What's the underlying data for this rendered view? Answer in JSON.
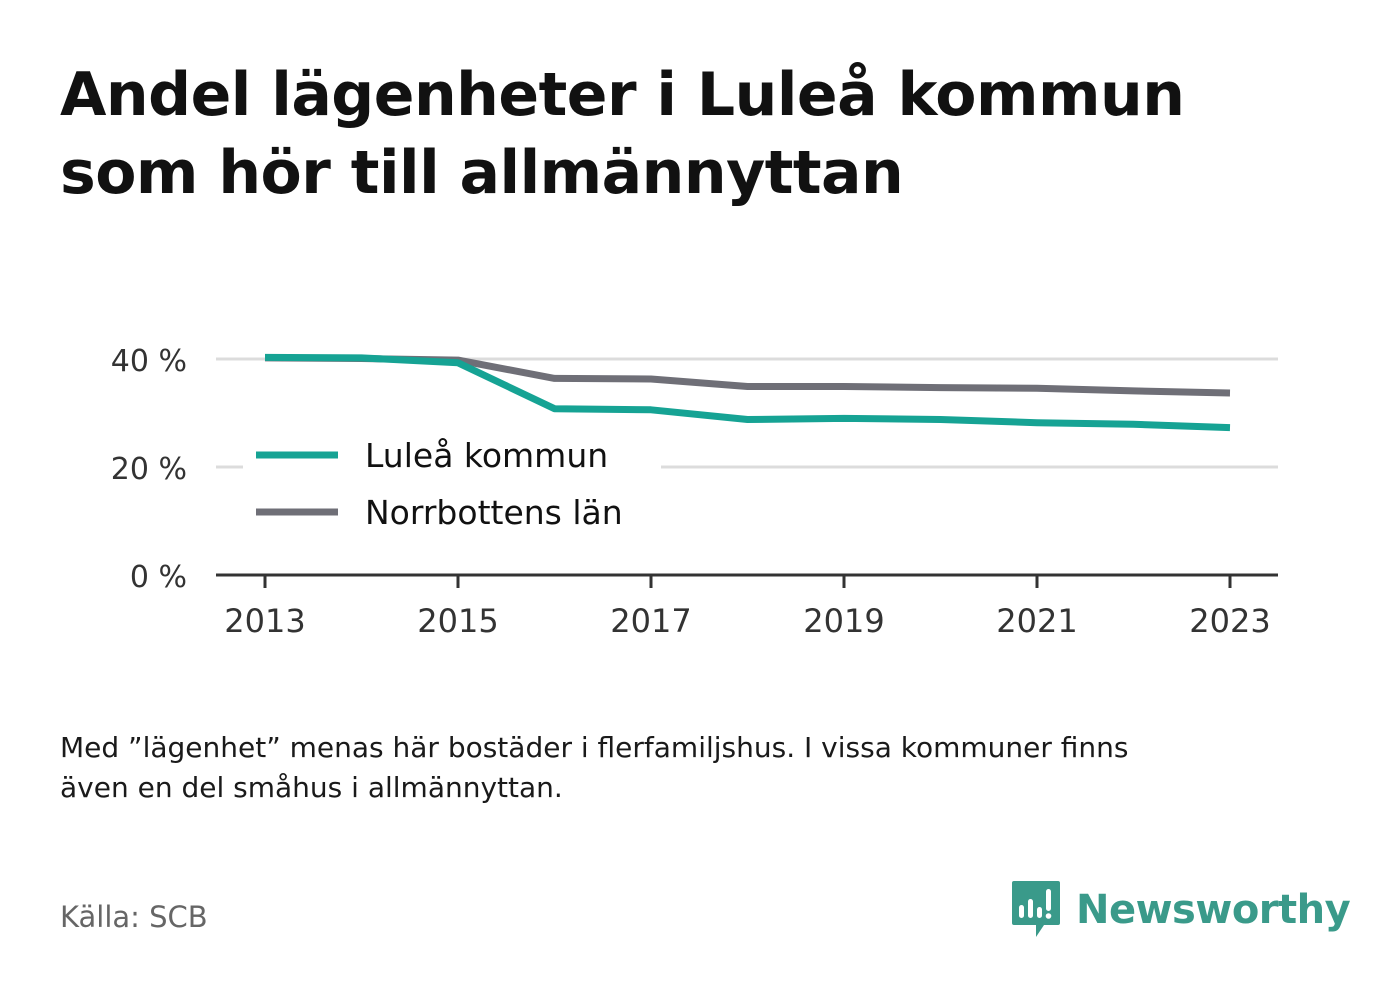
{
  "header": {
    "title_line1": "Andel lägenheter i Luleå kommun",
    "title_line2": "som hör till allmännyttan"
  },
  "note": {
    "line1": "Med ”lägenhet” menas här bostäder i flerfamiljshus. I vissa kommuner finns",
    "line2": "även en del småhus i allmännyttan."
  },
  "source": {
    "text": "Källa: SCB"
  },
  "logo": {
    "name": "Newsworthy",
    "icon": "newsworthy-logo-icon",
    "color": "#3a9a8a"
  },
  "chart_data": {
    "type": "line",
    "x": [
      2013,
      2014,
      2015,
      2016,
      2017,
      2018,
      2019,
      2020,
      2021,
      2022,
      2023
    ],
    "xticks": [
      2013,
      2015,
      2017,
      2019,
      2021,
      2023
    ],
    "xtick_labels": [
      "2013",
      "2015",
      "2017",
      "2019",
      "2021",
      "2023"
    ],
    "yticks": [
      0,
      20,
      40
    ],
    "ytick_labels": [
      "0 %",
      "20 %",
      "40 %"
    ],
    "ylim": [
      0,
      40
    ],
    "grid": true,
    "legend_position": "center-left",
    "series": [
      {
        "name": "Luleå kommun",
        "color": "#16a394",
        "values": [
          40.3,
          40.2,
          39.3,
          30.8,
          30.6,
          28.8,
          29.0,
          28.8,
          28.2,
          27.9,
          27.3
        ]
      },
      {
        "name": "Norrbottens län",
        "color": "#6f6f77",
        "values": [
          40.2,
          40.1,
          39.8,
          36.4,
          36.3,
          34.9,
          34.9,
          34.7,
          34.6,
          34.1,
          33.7
        ]
      }
    ]
  }
}
